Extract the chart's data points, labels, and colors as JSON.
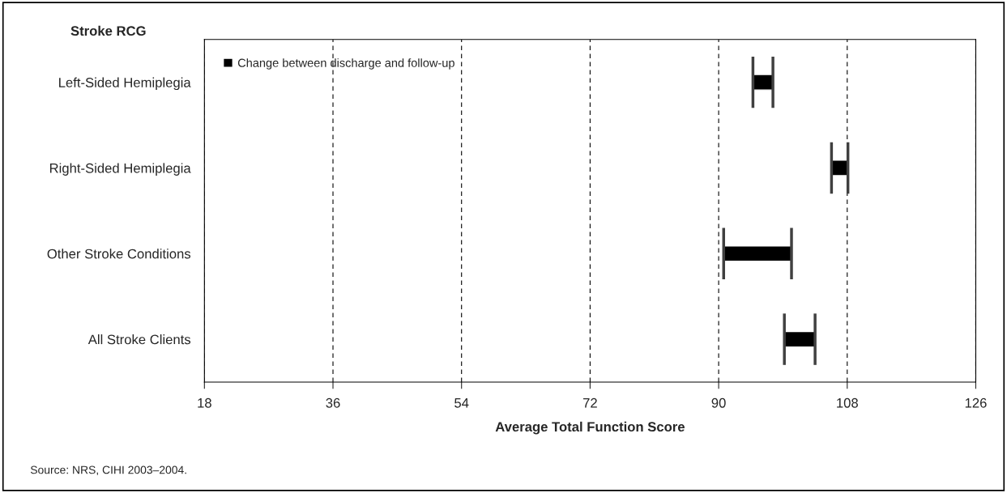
{
  "chart_data": {
    "type": "bar",
    "orientation": "horizontal",
    "ylabel": "Stroke RCG",
    "xlabel": "Average Total Function Score",
    "categories": [
      "Left-Sided Hemiplegia",
      "Right-Sided Hemiplegia",
      "Other Stroke Conditions",
      "All Stroke Clients"
    ],
    "series": [
      {
        "name": "Change between discharge and follow-up",
        "color": "#000000",
        "base": [
          94.8,
          105.8,
          90.7,
          99.2
        ],
        "values": [
          2.8,
          2.3,
          9.5,
          4.3
        ]
      }
    ],
    "xlim": [
      18,
      126
    ],
    "xticks": [
      18,
      36,
      54,
      72,
      90,
      108,
      126
    ],
    "grid": "x",
    "line_style": "dashed",
    "legend": "top left",
    "annotations": [
      "Source: NRS, CIHI 2003–2004."
    ]
  }
}
